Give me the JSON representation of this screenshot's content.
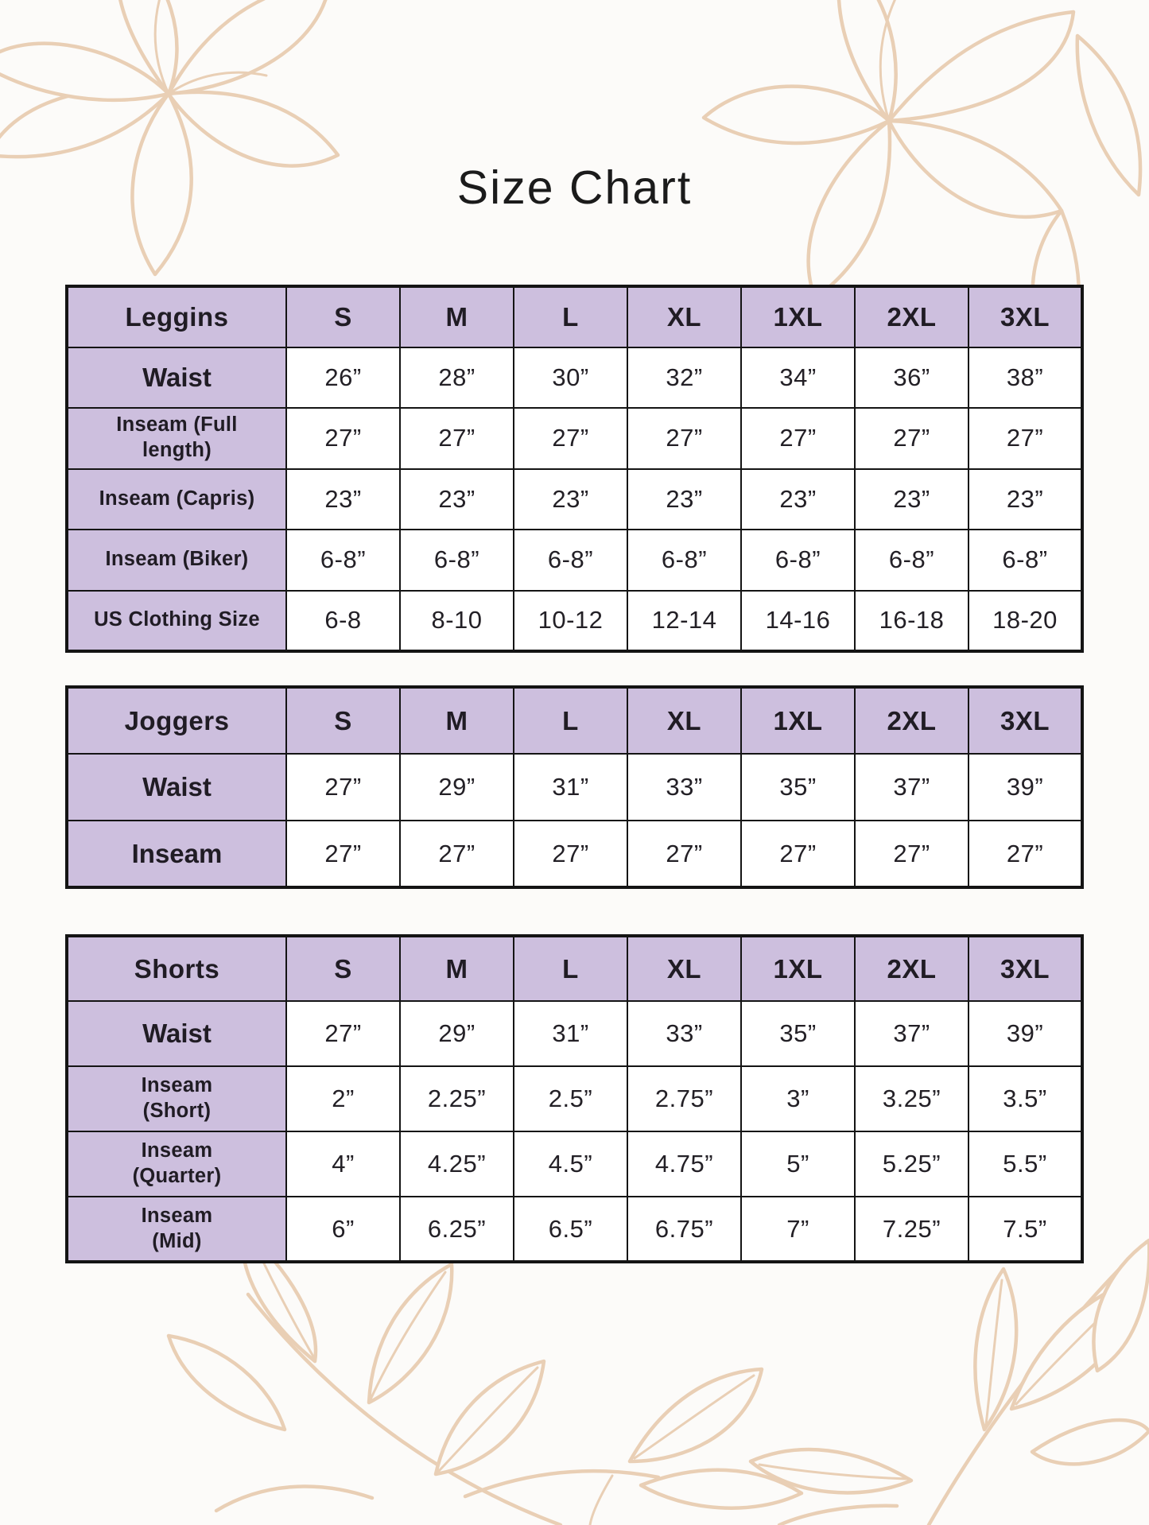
{
  "page": {
    "title": "Size Chart",
    "background_color": "#fcfbf9",
    "accent_purple": "#cdbfde",
    "border_color": "#141414",
    "floral_color": "#e9cfb5"
  },
  "decor": {
    "corners": [
      "top-left-flower",
      "top-right-flower",
      "bottom-left-branch",
      "bottom-right-branch"
    ]
  },
  "tables": [
    {
      "name": "Leggins",
      "columns": [
        "S",
        "M",
        "L",
        "XL",
        "1XL",
        "2XL",
        "3XL"
      ],
      "rows": [
        {
          "label": "Waist",
          "values": [
            "26”",
            "28”",
            "30”",
            "32”",
            "34”",
            "36”",
            "38”"
          ]
        },
        {
          "label": "Inseam (Full\nlength)",
          "values": [
            "27”",
            "27”",
            "27”",
            "27”",
            "27”",
            "27”",
            "27”"
          ]
        },
        {
          "label": "Inseam (Capris)",
          "values": [
            "23”",
            "23”",
            "23”",
            "23”",
            "23”",
            "23”",
            "23”"
          ]
        },
        {
          "label": "Inseam (Biker)",
          "values": [
            "6-8”",
            "6-8”",
            "6-8”",
            "6-8”",
            "6-8”",
            "6-8”",
            "6-8”"
          ]
        },
        {
          "label": "US Clothing Size",
          "values": [
            "6-8",
            "8-10",
            "10-12",
            "12-14",
            "14-16",
            "16-18",
            "18-20"
          ]
        }
      ]
    },
    {
      "name": "Joggers",
      "columns": [
        "S",
        "M",
        "L",
        "XL",
        "1XL",
        "2XL",
        "3XL"
      ],
      "rows": [
        {
          "label": "Waist",
          "values": [
            "27”",
            "29”",
            "31”",
            "33”",
            "35”",
            "37”",
            "39”"
          ]
        },
        {
          "label": "Inseam",
          "values": [
            "27”",
            "27”",
            "27”",
            "27”",
            "27”",
            "27”",
            "27”"
          ]
        }
      ]
    },
    {
      "name": "Shorts",
      "columns": [
        "S",
        "M",
        "L",
        "XL",
        "1XL",
        "2XL",
        "3XL"
      ],
      "rows": [
        {
          "label": "Waist",
          "values": [
            "27”",
            "29”",
            "31”",
            "33”",
            "35”",
            "37”",
            "39”"
          ]
        },
        {
          "label": "Inseam\n(Short)",
          "values": [
            "2”",
            "2.25”",
            "2.5”",
            "2.75”",
            "3”",
            "3.25”",
            "3.5”"
          ]
        },
        {
          "label": "Inseam\n(Quarter)",
          "values": [
            "4”",
            "4.25”",
            "4.5”",
            "4.75”",
            "5”",
            "5.25”",
            "5.5”"
          ]
        },
        {
          "label": "Inseam\n(Mid)",
          "values": [
            "6”",
            "6.25”",
            "6.5”",
            "6.75”",
            "7”",
            "7.25”",
            "7.5”"
          ]
        }
      ]
    }
  ]
}
